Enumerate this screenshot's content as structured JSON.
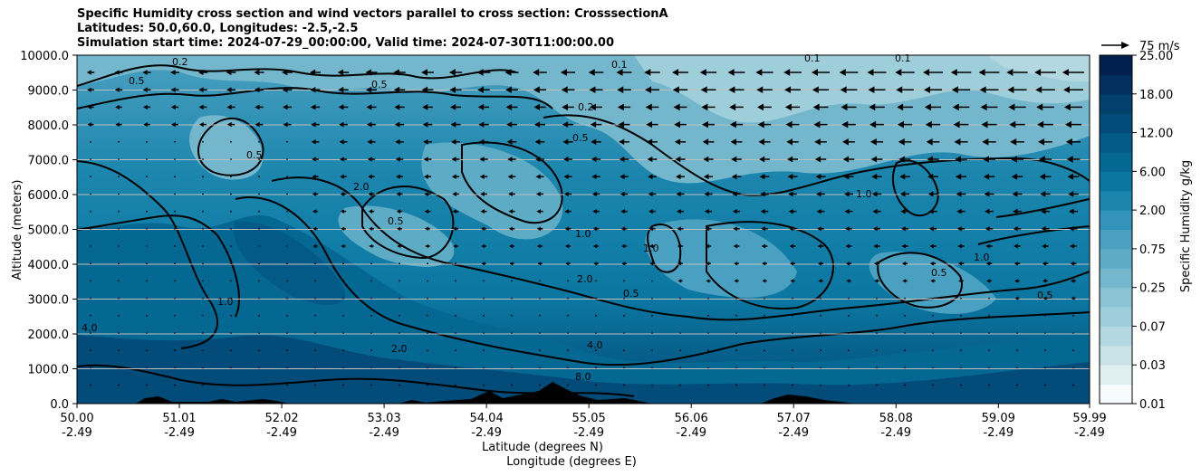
{
  "chart_data": {
    "type": "heatmap",
    "title_lines": [
      "Specific Humidity cross section and wind vectors parallel to cross section: CrosssectionA",
      "Latitudes: 50.0,60.0, Longitudes: -2.5,-2.5",
      "Simulation start time: 2024-07-29_00:00:00, Valid time: 2024-07-30T11:00:00.00"
    ],
    "ylabel": "Altitude (meters)",
    "xlabel_lat": "Latitude (degrees N)",
    "xlabel_lon": "Longitude (degrees E)",
    "ylim": [
      0,
      10000
    ],
    "yticks": [
      "0.0",
      "1000.0",
      "2000.0",
      "3000.0",
      "4000.0",
      "5000.0",
      "6000.0",
      "7000.0",
      "8000.0",
      "9000.0",
      "10000.0"
    ],
    "xlim": [
      50.0,
      59.99
    ],
    "xticks": [
      {
        "lat": "50.00",
        "lon": "-2.49"
      },
      {
        "lat": "51.01",
        "lon": "-2.49"
      },
      {
        "lat": "52.02",
        "lon": "-2.49"
      },
      {
        "lat": "53.03",
        "lon": "-2.49"
      },
      {
        "lat": "54.04",
        "lon": "-2.49"
      },
      {
        "lat": "55.05",
        "lon": "-2.49"
      },
      {
        "lat": "56.06",
        "lon": "-2.49"
      },
      {
        "lat": "57.07",
        "lon": "-2.49"
      },
      {
        "lat": "58.08",
        "lon": "-2.49"
      },
      {
        "lat": "59.09",
        "lon": "-2.49"
      },
      {
        "lat": "59.99",
        "lon": "-2.49"
      }
    ],
    "grid": "horizontal",
    "colorbar": {
      "label": "Specific Humidity g/kg",
      "levels": [
        0.01,
        0.02,
        0.03,
        0.05,
        0.07,
        0.1,
        0.25,
        0.5,
        0.75,
        1.0,
        2.0,
        4.0,
        6.0,
        9.0,
        12.0,
        15.0,
        18.0,
        21.0,
        25.0
      ],
      "tick_labels": [
        "0.01",
        "0.03",
        "0.07",
        "0.25",
        "0.75",
        "2.00",
        "6.00",
        "12.00",
        "18.00",
        "25.00"
      ],
      "colors": [
        "#f7fbfc",
        "#e0eff2",
        "#c9e3e9",
        "#b4d8e2",
        "#9fcedb",
        "#8bc3d5",
        "#74b7cd",
        "#5eabc6",
        "#4aa0c0",
        "#3393b8",
        "#1b85ad",
        "#0b77a1",
        "#056893",
        "#045a86",
        "#034b78",
        "#03406c",
        "#022f5e",
        "#01204f"
      ]
    },
    "reference_vector": "75 m/s",
    "contour_labels": [
      "0.1",
      "0.2",
      "0.5",
      "1.0",
      "2.0",
      "4.0",
      "8.0"
    ]
  }
}
